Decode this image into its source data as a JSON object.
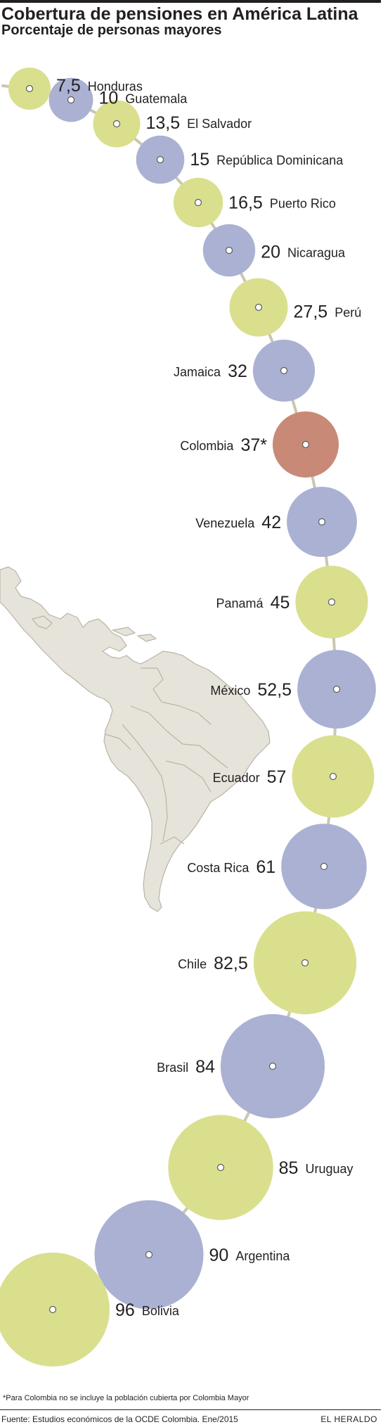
{
  "header": {
    "title": "Cobertura de pensiones en América Latina",
    "subtitle": "Porcentaje de personas mayores"
  },
  "chart_data": {
    "type": "bubble",
    "title": "Cobertura de pensiones en América Latina",
    "subtitle": "Porcentaje de personas mayores",
    "categories": [
      "Honduras",
      "Guatemala",
      "El Salvador",
      "República Dominicana",
      "Puerto Rico",
      "Nicaragua",
      "Perú",
      "Jamaica",
      "Colombia",
      "Venezuela",
      "Panamá",
      "México",
      "Ecuador",
      "Costa Rica",
      "Chile",
      "Brasil",
      "Uruguay",
      "Argentina",
      "Bolivia"
    ],
    "values": [
      7.5,
      10,
      13.5,
      15,
      16.5,
      20,
      27.5,
      32,
      37,
      42,
      45,
      52.5,
      57,
      61,
      82.5,
      84,
      85,
      90,
      96
    ],
    "value_labels": [
      "7,5",
      "10",
      "13,5",
      "15",
      "16,5",
      "20",
      "27,5",
      "32",
      "37*",
      "42",
      "45",
      "52,5",
      "57",
      "61",
      "82,5",
      "84",
      "85",
      "90",
      "96"
    ],
    "highlight": "Colombia",
    "colors": {
      "yellow": "#dadf8e",
      "blue": "#abb1d2",
      "highlight": "#c88a77",
      "line": "#c9c8b0",
      "map": "#e6e3da",
      "map_border": "#b8b4a7"
    }
  },
  "footnote": "*Para Colombia no se incluye la población cubierta por Colombia Mayor",
  "source": "Fuente: Estudios económicos de la OCDE Colombia. Ene/2015",
  "brand": "EL HERALDO"
}
